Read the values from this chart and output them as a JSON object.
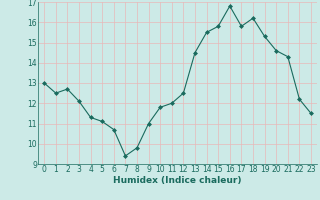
{
  "xlabel": "Humidex (Indice chaleur)",
  "x": [
    0,
    1,
    2,
    3,
    4,
    5,
    6,
    7,
    8,
    9,
    10,
    11,
    12,
    13,
    14,
    15,
    16,
    17,
    18,
    19,
    20,
    21,
    22,
    23
  ],
  "y": [
    13.0,
    12.5,
    12.7,
    12.1,
    11.3,
    11.1,
    10.7,
    9.4,
    9.8,
    11.0,
    11.8,
    12.0,
    12.5,
    14.5,
    15.5,
    15.8,
    16.8,
    15.8,
    16.2,
    15.3,
    14.6,
    14.3,
    12.2,
    11.5
  ],
  "line_color": "#1a6b5e",
  "marker": "D",
  "markersize": 2.0,
  "bg_color": "#cceae7",
  "grid_major_color": "#e8b8b8",
  "grid_minor_color": "#cceae7",
  "ylim": [
    9,
    17
  ],
  "xlim": [
    -0.5,
    23.5
  ],
  "yticks": [
    9,
    10,
    11,
    12,
    13,
    14,
    15,
    16,
    17
  ],
  "xticks": [
    0,
    1,
    2,
    3,
    4,
    5,
    6,
    7,
    8,
    9,
    10,
    11,
    12,
    13,
    14,
    15,
    16,
    17,
    18,
    19,
    20,
    21,
    22,
    23
  ],
  "tick_fontsize": 5.5,
  "label_fontsize": 6.5,
  "linewidth": 0.8
}
